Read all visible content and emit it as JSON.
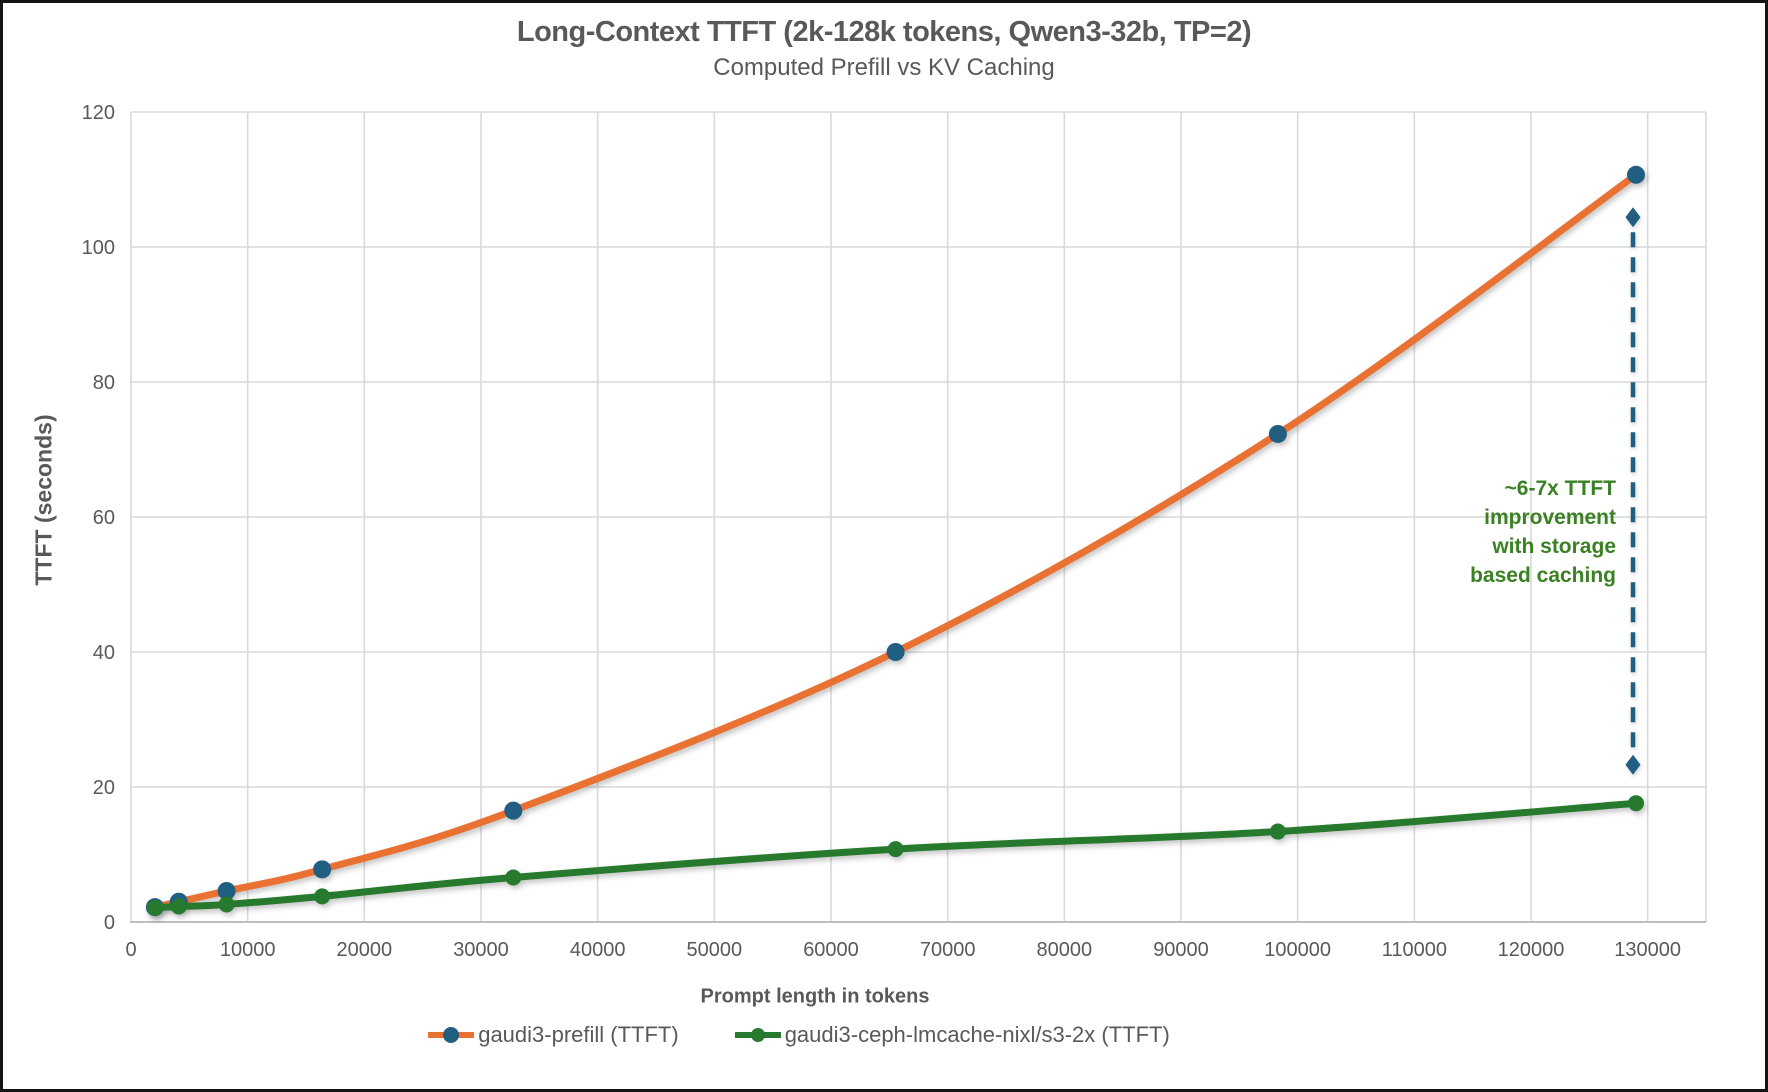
{
  "page": {
    "title": "Long-Context TTFT (2k-128k tokens, Qwen3-32b, TP=2)",
    "subtitle": "Computed Prefill vs KV Caching"
  },
  "chart_data": {
    "type": "line",
    "title": "Long-Context TTFT (2k-128k tokens, Qwen3-32b, TP=2)",
    "subtitle": "Computed Prefill vs KV Caching",
    "xlabel": "Prompt length in tokens",
    "ylabel": "TTFT (seconds)",
    "xlim": [
      0,
      135000
    ],
    "ylim": [
      0,
      120
    ],
    "x_ticks": [
      0,
      10000,
      20000,
      30000,
      40000,
      50000,
      60000,
      70000,
      80000,
      90000,
      100000,
      110000,
      120000,
      130000
    ],
    "y_ticks": [
      0,
      20,
      40,
      60,
      80,
      100,
      120
    ],
    "grid": true,
    "legend_position": "bottom",
    "x": [
      2048,
      4096,
      8192,
      16384,
      32768,
      65536,
      98304,
      129000
    ],
    "series": [
      {
        "name": "gaudi3-prefill (TTFT)",
        "color": "#E97132",
        "marker_color": "#215F82",
        "line_width": 7,
        "marker_radius": 9,
        "values": [
          2.2,
          3.0,
          4.6,
          7.8,
          16.5,
          40.0,
          72.3,
          110.7
        ]
      },
      {
        "name": "gaudi3-ceph-lmcache-nixl/s3-2x (TTFT)",
        "color": "#27792E",
        "marker_color": "#27792E",
        "line_width": 7,
        "marker_radius": 8,
        "values": [
          2.1,
          2.3,
          2.6,
          3.8,
          6.6,
          10.8,
          13.4,
          17.6
        ]
      }
    ],
    "annotation": {
      "lines": [
        "~6-7x TTFT",
        "improvement",
        "with storage",
        "based caching"
      ],
      "color": "#3A8123"
    },
    "arrow": {
      "x": 129000,
      "y_top": 104.4,
      "y_bottom": 23.3,
      "color": "#215F82"
    }
  },
  "colors": {
    "accent_orange": "#E97132",
    "accent_blue": "#215F82",
    "accent_green": "#27792E",
    "annotation_green": "#3A8123",
    "gridline": "#D9D9D9",
    "axis_text": "#595959",
    "frame_border": "#141414"
  }
}
